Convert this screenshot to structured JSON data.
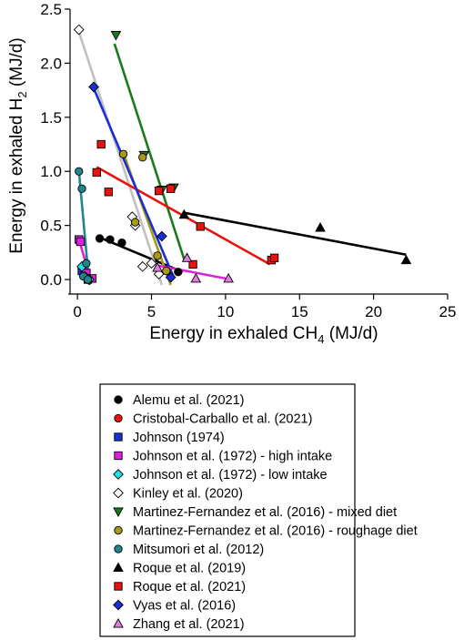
{
  "chart_data": {
    "type": "scatter",
    "xlabel": "Energy in exhaled CH",
    "xlabel_sub": "4",
    "xlabel_unit": " (MJ/d)",
    "ylabel": "Energy in exhaled H",
    "ylabel_sub": "2",
    "ylabel_unit": " (MJ/d)",
    "xlim": [
      -0.5,
      25
    ],
    "ylim": [
      -0.05,
      2.5
    ],
    "xticks": [
      0,
      5,
      10,
      15,
      20,
      25
    ],
    "yticks": [
      0.0,
      0.5,
      1.0,
      1.5,
      2.0,
      2.5
    ],
    "ytick_labels": [
      "0.0",
      "0.5",
      "1.0",
      "1.5",
      "2.0",
      "2.5"
    ],
    "grid": false,
    "legend_position": "below plot",
    "series": [
      {
        "name": "Alemu et al. (2021)",
        "marker": "circle",
        "color": "#000000",
        "points": [
          [
            1.5,
            0.38
          ],
          [
            2.2,
            0.37
          ],
          [
            3.0,
            0.34
          ],
          [
            6.8,
            0.07
          ]
        ],
        "fit": [
          [
            1.3,
            0.4
          ],
          [
            7.1,
            0.07
          ]
        ]
      },
      {
        "name": "Cristobal-Carballo et al. (2021)",
        "marker": "circle",
        "color": "#e8130e",
        "points": [],
        "fit": null
      },
      {
        "name": "Johnson (1974)",
        "marker": "square",
        "color": "#1531d6",
        "points": [
          [
            0.3,
            0.08
          ],
          [
            0.5,
            0.06
          ]
        ],
        "fit": null
      },
      {
        "name": "Johnson et al. (1972) - high intake",
        "marker": "square",
        "color": "#e01ee0",
        "points": [
          [
            0.1,
            0.37
          ],
          [
            0.2,
            0.35
          ],
          [
            0.6,
            0.06
          ],
          [
            0.7,
            0.0
          ],
          [
            1.0,
            0.01
          ]
        ],
        "fit": [
          [
            0.1,
            0.37
          ],
          [
            0.9,
            0.0
          ]
        ]
      },
      {
        "name": "Johnson et al. (1972) - low intake",
        "marker": "diamond",
        "color": "#1ee1e1",
        "points": [
          [
            0.3,
            0.12
          ],
          [
            0.5,
            0.03
          ],
          [
            0.8,
            0.0
          ]
        ],
        "fit": [
          [
            0.2,
            0.13
          ],
          [
            0.9,
            0.0
          ]
        ]
      },
      {
        "name": "Kinley et al. (2020)",
        "marker": "diamond",
        "color": "#ffffff",
        "points": [
          [
            0.1,
            2.31
          ],
          [
            3.7,
            0.58
          ],
          [
            3.9,
            0.5
          ],
          [
            4.4,
            0.12
          ],
          [
            5.0,
            0.15
          ],
          [
            5.5,
            0.05
          ]
        ],
        "fit": [
          [
            0.05,
            2.31
          ],
          [
            5.7,
            -0.05
          ]
        ],
        "fit_color": "#c0c0c0"
      },
      {
        "name": "Martinez-Fernandez et al. (2016) - mixed diet",
        "marker": "triangle-down",
        "color": "#1a7a1a",
        "points": [
          [
            2.6,
            2.26
          ],
          [
            4.5,
            1.15
          ],
          [
            5.7,
            0.83
          ],
          [
            6.5,
            0.85
          ]
        ],
        "fit": [
          [
            2.5,
            2.18
          ],
          [
            7.2,
            0.19
          ]
        ]
      },
      {
        "name": "Martinez-Fernandez et al. (2016) - roughage diet",
        "marker": "circle",
        "color": "#a89a14",
        "points": [
          [
            3.1,
            1.16
          ],
          [
            4.4,
            1.13
          ],
          [
            3.9,
            0.53
          ],
          [
            5.4,
            0.22
          ],
          [
            6.0,
            0.08
          ]
        ],
        "fit": [
          [
            3.1,
            1.17
          ],
          [
            6.3,
            -0.05
          ]
        ]
      },
      {
        "name": "Mitsumori et al. (2012)",
        "marker": "circle",
        "color": "#20868c",
        "points": [
          [
            0.1,
            1.0
          ],
          [
            0.3,
            0.84
          ],
          [
            0.6,
            0.15
          ],
          [
            0.4,
            0.03
          ],
          [
            0.7,
            0.0
          ]
        ],
        "fit": [
          [
            0.1,
            1.0
          ],
          [
            0.8,
            -0.05
          ]
        ]
      },
      {
        "name": "Roque et al. (2019)",
        "marker": "triangle-up",
        "color": "#000000",
        "points": [
          [
            7.2,
            0.6
          ],
          [
            16.4,
            0.48
          ],
          [
            22.2,
            0.18
          ]
        ],
        "fit": [
          [
            7.1,
            0.62
          ],
          [
            22.2,
            0.23
          ]
        ]
      },
      {
        "name": "Roque et al. (2021)",
        "marker": "square",
        "color": "#e8130e",
        "points": [
          [
            1.6,
            1.25
          ],
          [
            1.3,
            0.99
          ],
          [
            2.1,
            0.81
          ],
          [
            5.5,
            0.82
          ],
          [
            6.3,
            0.84
          ],
          [
            8.3,
            0.49
          ],
          [
            7.8,
            0.14
          ],
          [
            13.1,
            0.18
          ],
          [
            13.3,
            0.2
          ]
        ],
        "fit": [
          [
            1.3,
            1.04
          ],
          [
            13.0,
            0.14
          ]
        ]
      },
      {
        "name": "Vyas et al. (2016)",
        "marker": "diamond",
        "color": "#1a2ed6",
        "points": [
          [
            1.1,
            1.78
          ],
          [
            5.7,
            0.4
          ],
          [
            6.3,
            0.02
          ]
        ],
        "fit": [
          [
            1.0,
            1.8
          ],
          [
            6.5,
            0.02
          ]
        ]
      },
      {
        "name": "Zhang et al. (2021)",
        "marker": "triangle-up",
        "color": "#e37de0",
        "points": [
          [
            5.4,
            0.11
          ],
          [
            7.4,
            0.2
          ],
          [
            8.0,
            0.01
          ],
          [
            10.2,
            0.01
          ]
        ],
        "fit": [
          [
            5.4,
            0.13
          ],
          [
            10.0,
            0.01
          ]
        ],
        "fit_color": "#e020e0"
      }
    ]
  }
}
